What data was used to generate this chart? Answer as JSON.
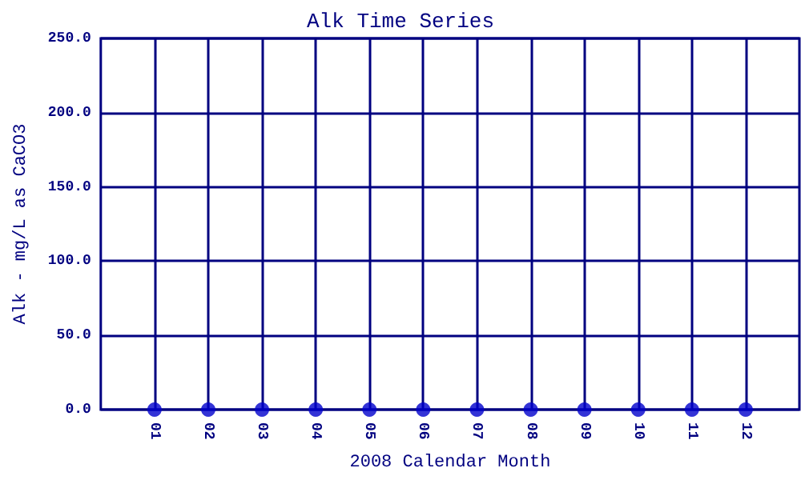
{
  "chart_data": {
    "type": "scatter",
    "title": "Alk Time Series",
    "xlabel": "2008 Calendar Month",
    "ylabel": "Alk - mg/L as CaCO3",
    "categories": [
      "01",
      "02",
      "03",
      "04",
      "05",
      "06",
      "07",
      "08",
      "09",
      "10",
      "11",
      "12"
    ],
    "series": [
      {
        "color": "#0000cc",
        "values": [
          0,
          0,
          0,
          0,
          0,
          0,
          0,
          0,
          0,
          0,
          0,
          0
        ]
      }
    ],
    "ylim": [
      0,
      250
    ],
    "yticks": [
      {
        "value": 0,
        "label": "0.0"
      },
      {
        "value": 50,
        "label": "50.0"
      },
      {
        "value": 100,
        "label": "100.0"
      },
      {
        "value": 150,
        "label": "150.0"
      },
      {
        "value": 200,
        "label": "200.0"
      },
      {
        "value": 250,
        "label": "250.0"
      }
    ],
    "grid": true,
    "marker": "circle"
  }
}
